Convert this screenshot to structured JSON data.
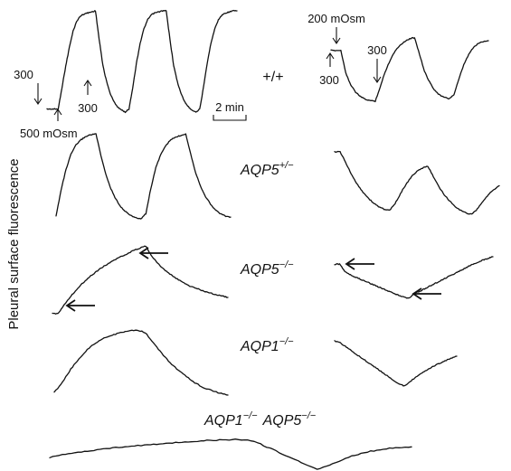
{
  "chart_data": {
    "type": "line",
    "ylabel": "Pleural surface fluorescence",
    "scale_bar": {
      "label": "2 min",
      "minutes": 2
    },
    "series": [
      {
        "genotype": "+/+",
        "sup": "",
        "solution": "500 mOsm",
        "values": [
          0.03,
          0.03,
          0.03,
          0.03,
          0.24,
          0.45,
          0.64,
          0.8,
          0.9,
          0.95,
          0.97,
          0.98,
          0.99,
          1.0,
          0.72,
          0.46,
          0.3,
          0.18,
          0.1,
          0.05,
          0.02,
          0.0,
          0.03,
          0.24,
          0.48,
          0.68,
          0.82,
          0.91,
          0.96,
          0.98,
          0.99,
          1.0,
          1.0,
          0.72,
          0.46,
          0.3,
          0.18,
          0.1,
          0.05,
          0.02,
          0.0,
          0.03,
          0.24,
          0.48,
          0.68,
          0.82,
          0.91,
          0.96,
          0.98,
          0.99,
          1.0,
          1.0
        ]
      },
      {
        "genotype": "+/+",
        "sup": "",
        "solution": "200 mOsm",
        "values": [
          0.78,
          0.78,
          0.78,
          0.44,
          0.25,
          0.14,
          0.07,
          0.03,
          0.01,
          0.0,
          0.22,
          0.45,
          0.63,
          0.77,
          0.86,
          0.92,
          0.96,
          0.98,
          0.72,
          0.46,
          0.3,
          0.18,
          0.1,
          0.06,
          0.04,
          0.1,
          0.34,
          0.56,
          0.72,
          0.83,
          0.89,
          0.92,
          0.93
        ]
      },
      {
        "genotype": "AQP5",
        "sup": "+/−",
        "solution": "500 mOsm",
        "values": [
          0.03,
          0.34,
          0.58,
          0.76,
          0.87,
          0.93,
          0.97,
          0.99,
          1.0,
          0.74,
          0.52,
          0.35,
          0.23,
          0.14,
          0.08,
          0.04,
          0.01,
          0.0,
          0.06,
          0.36,
          0.6,
          0.76,
          0.86,
          0.93,
          0.96,
          0.98,
          1.0,
          0.76,
          0.54,
          0.38,
          0.26,
          0.17,
          0.1,
          0.06,
          0.03,
          0.02
        ]
      },
      {
        "genotype": "AQP5",
        "sup": "+/−",
        "solution": "200 mOsm",
        "values": [
          1.0,
          1.0,
          0.84,
          0.66,
          0.52,
          0.4,
          0.3,
          0.22,
          0.16,
          0.12,
          0.1,
          0.2,
          0.36,
          0.5,
          0.62,
          0.7,
          0.75,
          0.78,
          0.62,
          0.46,
          0.34,
          0.24,
          0.16,
          0.1,
          0.06,
          0.04,
          0.12,
          0.24,
          0.34,
          0.42,
          0.48
        ]
      },
      {
        "genotype": "AQP5",
        "sup": "−/−",
        "solution": "500 mOsm",
        "values": [
          0.0,
          0.0,
          0.12,
          0.22,
          0.32,
          0.41,
          0.49,
          0.56,
          0.62,
          0.68,
          0.73,
          0.78,
          0.82,
          0.86,
          0.9,
          0.94,
          0.97,
          1.0,
          0.86,
          0.76,
          0.68,
          0.61,
          0.55,
          0.5,
          0.45,
          0.41,
          0.38,
          0.35,
          0.32,
          0.3,
          0.28,
          0.26,
          0.24
        ]
      },
      {
        "genotype": "AQP5",
        "sup": "−/−",
        "solution": "200 mOsm",
        "values": [
          0.82,
          0.82,
          0.66,
          0.58,
          0.52,
          0.47,
          0.42,
          0.37,
          0.32,
          0.27,
          0.22,
          0.17,
          0.12,
          0.07,
          0.03,
          0.0,
          0.1,
          0.16,
          0.22,
          0.28,
          0.34,
          0.4,
          0.46,
          0.52,
          0.58,
          0.64,
          0.7,
          0.76,
          0.82,
          0.87,
          0.92,
          0.96,
          1.0
        ]
      },
      {
        "genotype": "AQP1",
        "sup": "−/−",
        "solution": "500 mOsm",
        "values": [
          0.04,
          0.2,
          0.4,
          0.56,
          0.7,
          0.8,
          0.87,
          0.92,
          0.96,
          0.98,
          1.0,
          0.96,
          0.8,
          0.64,
          0.5,
          0.38,
          0.28,
          0.19,
          0.12,
          0.07,
          0.03,
          0.0
        ]
      },
      {
        "genotype": "AQP1",
        "sup": "−/−",
        "solution": "200 mOsm",
        "values": [
          1.0,
          0.95,
          0.86,
          0.77,
          0.68,
          0.59,
          0.5,
          0.41,
          0.32,
          0.23,
          0.14,
          0.05,
          0.0,
          0.1,
          0.2,
          0.28,
          0.36,
          0.44,
          0.5,
          0.56,
          0.61,
          0.66
        ]
      },
      {
        "genotype": "AQP1⁻/⁻ AQP5",
        "sup": "−/−",
        "solution": "500/200 mOsm",
        "values": [
          0.4,
          0.5,
          0.58,
          0.65,
          0.71,
          0.76,
          0.81,
          0.85,
          0.89,
          0.93,
          0.96,
          0.98,
          1.0,
          0.94,
          0.7,
          0.46,
          0.22,
          0.0,
          0.18,
          0.4,
          0.56,
          0.66,
          0.72,
          0.75
        ]
      }
    ],
    "annotations": {
      "left_300_a": "300",
      "left_500": "500 mOsm",
      "left_300_b": "300",
      "right_200": "200 mOsm",
      "right_300_a": "300",
      "right_300_b": "300"
    },
    "row_labels": {
      "r1": "+/+",
      "r2_main": "AQP5",
      "r2_sup": "+/−",
      "r3_main": "AQP5",
      "r3_sup": "−/−",
      "r4_main": "AQP1",
      "r4_sup": "−/−",
      "r5_a_main": "AQP1",
      "r5_a_sup": "−/−",
      "r5_b_main": "AQP5",
      "r5_b_sup": "−/−"
    }
  }
}
